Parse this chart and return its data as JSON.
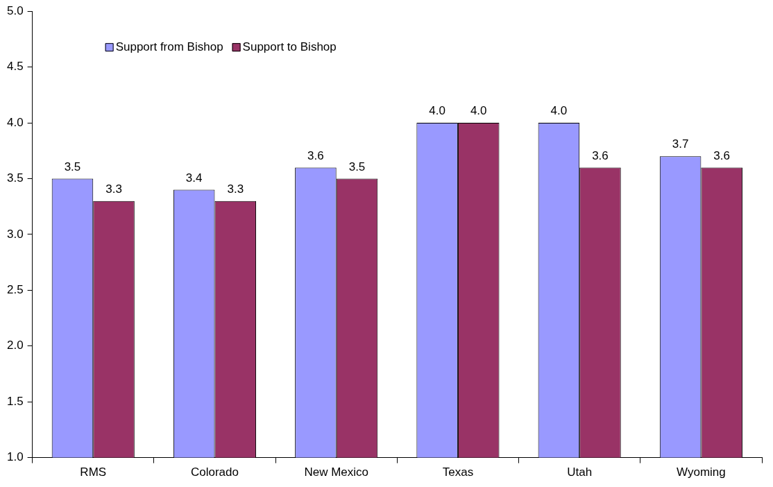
{
  "chart_data": {
    "type": "bar",
    "categories": [
      "RMS",
      "Colorado",
      "New Mexico",
      "Texas",
      "Utah",
      "Wyoming"
    ],
    "series": [
      {
        "name": "Support from Bishop",
        "color": "#9999ff",
        "values": [
          3.5,
          3.4,
          3.6,
          4.0,
          4.0,
          3.7
        ],
        "value_labels": [
          "3.5",
          "3.4",
          "3.6",
          "4.0",
          "4.0",
          "3.7"
        ]
      },
      {
        "name": "Support to Bishop",
        "color": "#993366",
        "values": [
          3.3,
          3.3,
          3.5,
          4.0,
          3.6,
          3.6
        ],
        "value_labels": [
          "3.3",
          "3.3",
          "3.5",
          "4.0",
          "3.6",
          "3.6"
        ]
      }
    ],
    "ylim": [
      1,
      5
    ],
    "yticks": [
      {
        "value": 1,
        "label": "1.0"
      },
      {
        "value": 1.5,
        "label": "1.5"
      },
      {
        "value": 2,
        "label": "2.0"
      },
      {
        "value": 2.5,
        "label": "2.5"
      },
      {
        "value": 3,
        "label": "3.0"
      },
      {
        "value": 3.5,
        "label": "3.5"
      },
      {
        "value": 4,
        "label": "4.0"
      },
      {
        "value": 4.5,
        "label": "4.5"
      },
      {
        "value": 5,
        "label": "5.0"
      }
    ],
    "grid": false,
    "legend": "top left"
  }
}
